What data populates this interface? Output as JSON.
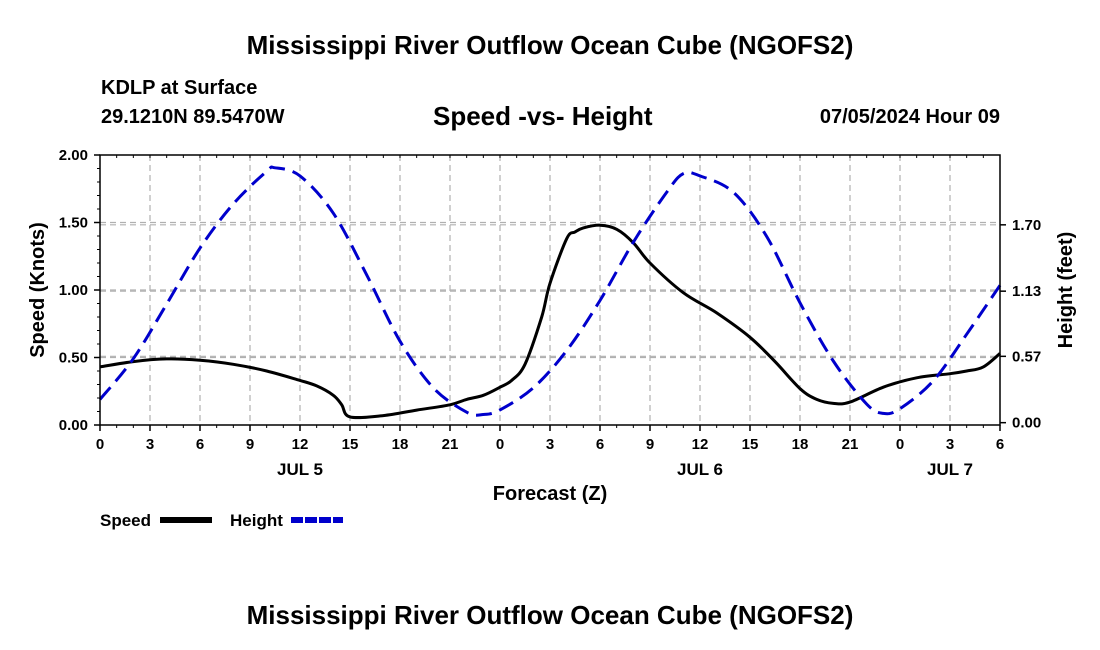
{
  "header": {
    "title": "Mississippi River Outflow Ocean Cube (NGOFS2)",
    "station": "KDLP at Surface",
    "coords": "29.1210N  89.5470W",
    "subtitle": "Speed -vs- Height",
    "datetime": "07/05/2024 Hour 09"
  },
  "footer": {
    "title": "Mississippi River Outflow Ocean Cube (NGOFS2)"
  },
  "legend": {
    "speed_label": "Speed",
    "height_label": "Height"
  },
  "colors": {
    "speed": "#000000",
    "height": "#0000cc",
    "grid": "#b0b0b0"
  },
  "chart_data": {
    "type": "line",
    "xlabel": "Forecast (Z)",
    "ylabel": "Speed (Knots)",
    "y2label": "Height (feet)",
    "xlim": [
      0,
      54
    ],
    "ylim": [
      0,
      2.0
    ],
    "y2lim": [
      -0.02,
      2.3
    ],
    "x_ticks": [
      0,
      3,
      6,
      9,
      12,
      15,
      18,
      21,
      24,
      27,
      30,
      33,
      36,
      39,
      42,
      45,
      48,
      51,
      54
    ],
    "x_tick_labels": [
      "0",
      "3",
      "6",
      "9",
      "12",
      "15",
      "18",
      "21",
      "0",
      "3",
      "6",
      "9",
      "12",
      "15",
      "18",
      "21",
      "0",
      "3",
      "6"
    ],
    "date_labels": [
      {
        "x": 12,
        "label": "JUL 5"
      },
      {
        "x": 36,
        "label": "JUL 6"
      },
      {
        "x": 51,
        "label": "JUL 7"
      }
    ],
    "y_ticks": [
      0.0,
      0.5,
      1.0,
      1.5,
      2.0
    ],
    "y_tick_labels": [
      "0.00",
      "0.50",
      "1.00",
      "1.50",
      "2.00"
    ],
    "y2_ticks": [
      0.0,
      0.57,
      1.13,
      1.7
    ],
    "y2_tick_labels": [
      "0.00",
      "0.57",
      "1.13",
      "1.70"
    ],
    "series": [
      {
        "name": "Speed",
        "axis": "left",
        "x": [
          0,
          2,
          4,
          6,
          8,
          10,
          12,
          13,
          14,
          14.5,
          15,
          17,
          19,
          21,
          22,
          23,
          24,
          24.7,
          25.5,
          26.5,
          27,
          28,
          28.5,
          29,
          30,
          31,
          32,
          33,
          35,
          37,
          39,
          40.5,
          42,
          43,
          44,
          45,
          47,
          49,
          51,
          52,
          53,
          54
        ],
        "values": [
          0.43,
          0.47,
          0.49,
          0.48,
          0.45,
          0.4,
          0.33,
          0.29,
          0.22,
          0.15,
          0.06,
          0.07,
          0.11,
          0.15,
          0.19,
          0.22,
          0.28,
          0.33,
          0.45,
          0.8,
          1.05,
          1.38,
          1.43,
          1.46,
          1.48,
          1.45,
          1.35,
          1.2,
          0.98,
          0.83,
          0.65,
          0.47,
          0.27,
          0.19,
          0.16,
          0.17,
          0.28,
          0.35,
          0.38,
          0.4,
          0.43,
          0.53
        ]
      },
      {
        "name": "Height",
        "axis": "right",
        "x": [
          0,
          2,
          4,
          6,
          8,
          10,
          10.5,
          12,
          14,
          16,
          18,
          20,
          22,
          23,
          24,
          26,
          28,
          30,
          32,
          34,
          35,
          36,
          38,
          40,
          42,
          44,
          46,
          47,
          48,
          50,
          52,
          54
        ],
        "values": [
          0.2,
          0.55,
          1.02,
          1.5,
          1.88,
          2.16,
          2.19,
          2.12,
          1.8,
          1.27,
          0.7,
          0.3,
          0.09,
          0.07,
          0.11,
          0.3,
          0.62,
          1.05,
          1.55,
          1.98,
          2.14,
          2.12,
          1.98,
          1.6,
          1.03,
          0.53,
          0.16,
          0.08,
          0.12,
          0.36,
          0.76,
          1.18
        ]
      }
    ]
  }
}
